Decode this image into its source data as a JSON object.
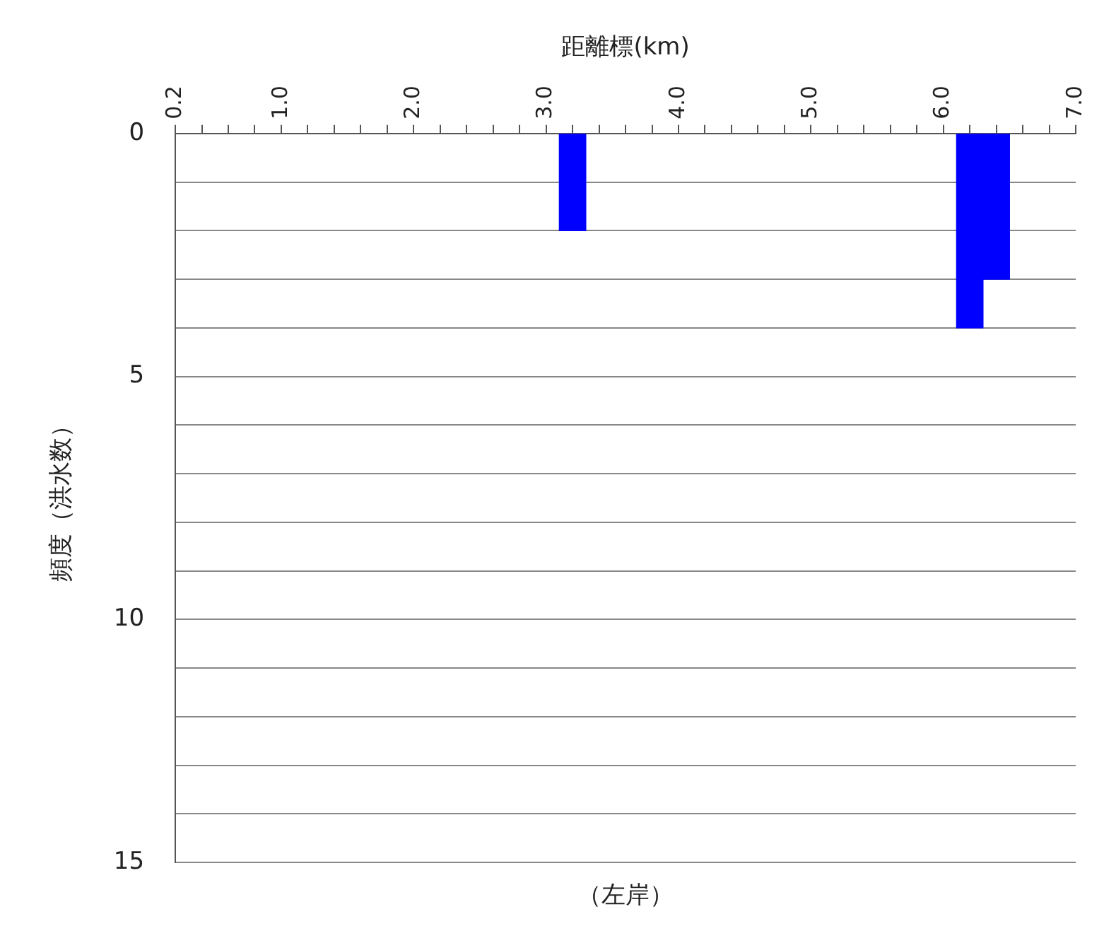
{
  "chart_data": {
    "type": "bar",
    "xlabel": "距離標(km)",
    "ylabel": "頻度（洪水数）",
    "annotations": [
      "（左岸）"
    ],
    "x": [
      3.2,
      6.2,
      6.4
    ],
    "values": [
      2,
      4,
      3
    ],
    "color": "#0000ff",
    "xlim": [
      0.2,
      7.0
    ],
    "xticks": [
      0.2,
      {
        "value": 0.4,
        "label": null
      },
      {
        "value": 0.6,
        "label": null
      },
      {
        "value": 0.8,
        "label": null
      },
      {
        "value": 1,
        "label": "1.0"
      },
      {
        "value": 1.2,
        "label": null
      },
      {
        "value": 1.4,
        "label": null
      },
      {
        "value": 1.6,
        "label": null
      },
      {
        "value": 1.8,
        "label": null
      },
      {
        "value": 2,
        "label": "2.0"
      },
      {
        "value": 2.2,
        "label": null
      },
      {
        "value": 2.4,
        "label": null
      },
      {
        "value": 2.6,
        "label": null
      },
      {
        "value": 2.8,
        "label": null
      },
      {
        "value": 3,
        "label": "3.0"
      },
      {
        "value": 3.2,
        "label": null
      },
      {
        "value": 3.4,
        "label": null
      },
      {
        "value": 3.6,
        "label": null
      },
      {
        "value": 3.8,
        "label": null
      },
      {
        "value": 4,
        "label": "4.0"
      },
      {
        "value": 4.2,
        "label": null
      },
      {
        "value": 4.4,
        "label": null
      },
      {
        "value": 4.6,
        "label": null
      },
      {
        "value": 4.8,
        "label": null
      },
      {
        "value": 5,
        "label": "5.0"
      },
      {
        "value": 5.2,
        "label": null
      },
      {
        "value": 5.4,
        "label": null
      },
      {
        "value": 5.6,
        "label": null
      },
      {
        "value": 5.8,
        "label": null
      },
      {
        "value": 6,
        "label": "6.0"
      },
      {
        "value": 6.2,
        "label": null
      },
      {
        "value": 6.4,
        "label": null
      },
      {
        "value": 6.6,
        "label": null
      },
      {
        "value": 6.8,
        "label": null
      },
      {
        "value": 7,
        "label": "7.0"
      }
    ],
    "ylim": [
      15,
      0
    ],
    "yticks": [
      0,
      {
        "value": 1,
        "label": null
      },
      {
        "value": 2,
        "label": null
      },
      {
        "value": 3,
        "label": null
      },
      {
        "value": 4,
        "label": null
      },
      5,
      {
        "value": 6,
        "label": null
      },
      {
        "value": 7,
        "label": null
      },
      {
        "value": 8,
        "label": null
      },
      {
        "value": 9,
        "label": null
      },
      10,
      {
        "value": 11,
        "label": null
      },
      {
        "value": 12,
        "label": null
      },
      {
        "value": 13,
        "label": null
      },
      {
        "value": 14,
        "label": null
      },
      15
    ],
    "grid": "y"
  }
}
